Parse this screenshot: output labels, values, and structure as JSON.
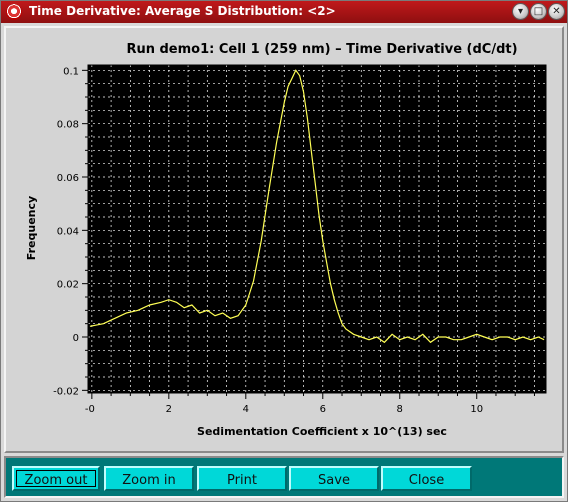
{
  "window": {
    "title": "Time Derivative: Average S Distribution: <2>",
    "controls": [
      "minimize",
      "maximize",
      "close"
    ]
  },
  "colors": {
    "titlebar": "#b31416",
    "plot_background": "#000000",
    "grid": "#ffffff",
    "curve": "#ffff55",
    "button_bar": "#007878",
    "button": "#00d8d8"
  },
  "buttons": {
    "zoom_out": "Zoom out",
    "zoom_in": "Zoom in",
    "print": "Print",
    "save": "Save",
    "close": "Close"
  },
  "chart_data": {
    "type": "line",
    "title": "Run demo1: Cell 1 (259 nm) – Time Derivative (dC/dt)",
    "xlabel": "Sedimentation Coefficient x 10^(13) sec",
    "ylabel": "Frequency",
    "xlim": [
      -0.1,
      11.8
    ],
    "ylim": [
      -0.021,
      0.102
    ],
    "x_ticks": [
      "-0",
      "2",
      "4",
      "6",
      "8",
      "10"
    ],
    "y_ticks": [
      "0.1",
      "0.08",
      "0.06",
      "0.04",
      "0.02",
      "0",
      "-0.02"
    ],
    "grid": true,
    "series": [
      {
        "x": [
          -0.05,
          0.3,
          0.6,
          0.9,
          1.2,
          1.5,
          1.8,
          2.0,
          2.2,
          2.4,
          2.6,
          2.8,
          3.0,
          3.2,
          3.4,
          3.6,
          3.8,
          4.0,
          4.2,
          4.4,
          4.6,
          4.8,
          5.0,
          5.1,
          5.2,
          5.3,
          5.4,
          5.5,
          5.6,
          5.7,
          5.8,
          5.9,
          6.0,
          6.1,
          6.2,
          6.3,
          6.4,
          6.5,
          6.6,
          6.8,
          7.0,
          7.2,
          7.4,
          7.6,
          7.8,
          8.0,
          8.2,
          8.4,
          8.6,
          8.8,
          9.0,
          9.2,
          9.4,
          9.6,
          9.8,
          10.0,
          10.2,
          10.4,
          10.6,
          10.8,
          11.0,
          11.2,
          11.4,
          11.6,
          11.75
        ],
        "y": [
          0.004,
          0.005,
          0.007,
          0.009,
          0.01,
          0.012,
          0.013,
          0.014,
          0.013,
          0.011,
          0.012,
          0.009,
          0.01,
          0.008,
          0.009,
          0.007,
          0.008,
          0.012,
          0.021,
          0.036,
          0.055,
          0.073,
          0.088,
          0.094,
          0.097,
          0.1,
          0.098,
          0.092,
          0.082,
          0.07,
          0.058,
          0.046,
          0.036,
          0.028,
          0.02,
          0.014,
          0.009,
          0.005,
          0.003,
          0.001,
          0.0,
          -0.001,
          0.0,
          -0.002,
          0.001,
          -0.001,
          0.0,
          -0.001,
          0.001,
          -0.002,
          0.0,
          0.0,
          -0.001,
          -0.001,
          0.0,
          0.001,
          0.0,
          -0.001,
          0.0,
          0.0,
          -0.001,
          0.0,
          -0.001,
          0.0,
          -0.001
        ]
      }
    ]
  }
}
